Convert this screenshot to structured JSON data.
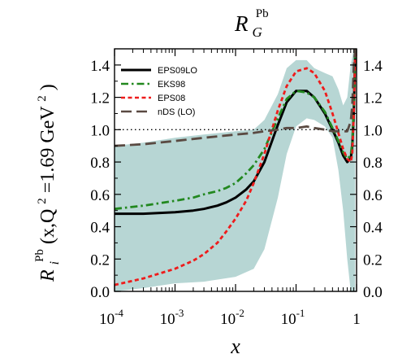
{
  "chart_data": {
    "type": "line",
    "title": {
      "main": "R",
      "subscript": "G",
      "superscript": "Pb"
    },
    "xlabel": "x",
    "ylabel": {
      "R": "R",
      "sub": "i",
      "sup": "Pb",
      "args": "(x,Q",
      "q_sup": "2",
      "eq": "=1.69 GeV",
      "gev_sup": "2",
      "close": ")"
    },
    "x_scale": "log",
    "xlim": [
      0.0001,
      1
    ],
    "ylim": [
      0.0,
      1.5
    ],
    "x_ticks": [
      {
        "value": 0.0001,
        "base": "10",
        "exp": "-4"
      },
      {
        "value": 0.001,
        "base": "10",
        "exp": "-3"
      },
      {
        "value": 0.01,
        "base": "10",
        "exp": "-2"
      },
      {
        "value": 0.1,
        "base": "10",
        "exp": "-1"
      },
      {
        "value": 1,
        "base": "1",
        "exp": ""
      }
    ],
    "y_ticks": [
      "0.0",
      "0.2",
      "0.4",
      "0.6",
      "0.8",
      "1.0",
      "1.2",
      "1.4"
    ],
    "y_tick_values": [
      0.0,
      0.2,
      0.4,
      0.6,
      0.8,
      1.0,
      1.2,
      1.4
    ],
    "reference_line": {
      "y": 1.0,
      "style": "dotted"
    },
    "legend": {
      "placement": "top-left"
    },
    "band": {
      "color": "#b7d6d4",
      "x": [
        0.0001,
        0.0003,
        0.001,
        0.003,
        0.01,
        0.02,
        0.03,
        0.05,
        0.07,
        0.1,
        0.15,
        0.2,
        0.3,
        0.4,
        0.5,
        0.6,
        0.7,
        0.8,
        0.9,
        0.95
      ],
      "upper": [
        0.9,
        0.92,
        0.95,
        0.97,
        0.99,
        1.0,
        1.06,
        1.22,
        1.38,
        1.43,
        1.43,
        1.38,
        1.35,
        1.33,
        1.25,
        1.15,
        1.2,
        1.4,
        1.5,
        1.5
      ],
      "lower": [
        0.0,
        0.02,
        0.05,
        0.06,
        0.09,
        0.14,
        0.26,
        0.58,
        0.85,
        1.02,
        1.07,
        1.06,
        1.02,
        0.95,
        0.75,
        0.5,
        0.2,
        0.0,
        0.0,
        0.0
      ]
    },
    "series": [
      {
        "name": "EPS09LO",
        "color": "#000000",
        "style": "solid",
        "x": [
          0.0001,
          0.0003,
          0.001,
          0.002,
          0.003,
          0.005,
          0.007,
          0.01,
          0.015,
          0.02,
          0.03,
          0.05,
          0.07,
          0.1,
          0.15,
          0.2,
          0.3,
          0.4,
          0.5,
          0.6,
          0.7,
          0.8,
          0.85,
          0.9,
          0.95
        ],
        "y": [
          0.48,
          0.48,
          0.49,
          0.5,
          0.51,
          0.53,
          0.55,
          0.58,
          0.63,
          0.68,
          0.8,
          1.03,
          1.17,
          1.24,
          1.24,
          1.2,
          1.1,
          1.0,
          0.92,
          0.84,
          0.8,
          0.82,
          0.9,
          1.1,
          1.5
        ]
      },
      {
        "name": "EKS98",
        "color": "#22881f",
        "style": "dashdot",
        "x": [
          0.0001,
          0.0003,
          0.001,
          0.002,
          0.003,
          0.005,
          0.007,
          0.01,
          0.015,
          0.02,
          0.03,
          0.05,
          0.07,
          0.1,
          0.15,
          0.2,
          0.3,
          0.4,
          0.5,
          0.6,
          0.7,
          0.8,
          0.85,
          0.9,
          0.95
        ],
        "y": [
          0.51,
          0.53,
          0.56,
          0.58,
          0.6,
          0.62,
          0.64,
          0.67,
          0.73,
          0.78,
          0.88,
          1.07,
          1.19,
          1.24,
          1.23,
          1.2,
          1.11,
          1.01,
          0.93,
          0.86,
          0.82,
          0.84,
          0.92,
          1.15,
          1.5
        ]
      },
      {
        "name": "EPS08",
        "color": "#ee1c1c",
        "style": "dashed",
        "x": [
          0.0001,
          0.0003,
          0.001,
          0.002,
          0.003,
          0.005,
          0.007,
          0.01,
          0.015,
          0.02,
          0.03,
          0.05,
          0.07,
          0.1,
          0.15,
          0.2,
          0.3,
          0.4,
          0.5,
          0.6,
          0.7,
          0.8,
          0.85,
          0.9,
          0.95
        ],
        "y": [
          0.04,
          0.08,
          0.14,
          0.19,
          0.23,
          0.3,
          0.37,
          0.45,
          0.56,
          0.67,
          0.85,
          1.12,
          1.27,
          1.36,
          1.38,
          1.35,
          1.24,
          1.1,
          0.98,
          0.88,
          0.82,
          0.8,
          0.85,
          1.1,
          1.5
        ]
      },
      {
        "name": "nDS (LO)",
        "color": "#5a4a42",
        "style": "longdash",
        "x": [
          0.0001,
          0.0003,
          0.001,
          0.003,
          0.01,
          0.02,
          0.03,
          0.05,
          0.07,
          0.1,
          0.15,
          0.2,
          0.3,
          0.4,
          0.5,
          0.6,
          0.7,
          0.8,
          0.85,
          0.9,
          0.95
        ],
        "y": [
          0.9,
          0.91,
          0.93,
          0.95,
          0.97,
          0.98,
          0.99,
          1.0,
          1.01,
          1.01,
          1.02,
          1.01,
          1.0,
          0.99,
          0.99,
          0.99,
          0.99,
          1.05,
          1.15,
          1.4,
          1.5
        ]
      }
    ]
  }
}
